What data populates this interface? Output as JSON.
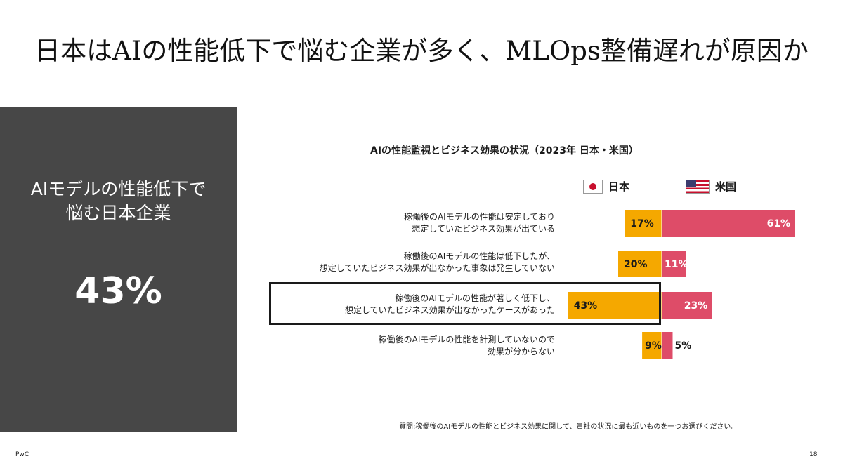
{
  "title": "日本はAIの性能低下で悩む企業が多く、MLOps整備遅れが原因か",
  "side_panel": {
    "heading_line1": "AIモデルの性能低下で",
    "heading_line2": "悩む日本企業",
    "value": "43%"
  },
  "footnote": "質問:稼働後のAIモデルの性能とビジネス効果に関して、貴社の状況に最も近いものを一つお選びください。",
  "brand": "PwC",
  "page_number": "18",
  "colors": {
    "japan": "#f5a800",
    "usa": "#de4c68",
    "panel": "#474747",
    "highlight_border": "#1a1a1a"
  },
  "chart_data": {
    "type": "bar",
    "orientation": "horizontal-diverging",
    "title": "AIの性能監視とビジネス効果の状況（2023年 日本・米国）",
    "categories": [
      [
        "稼働後のAIモデルの性能は安定しており",
        "想定していたビジネス効果が出ている"
      ],
      [
        "稼働後のAIモデルの性能は低下したが、",
        "想定していたビジネス効果が出なかった事象は発生していない"
      ],
      [
        "稼働後のAIモデルの性能が著しく低下し、",
        "想定していたビジネス効果が出なかったケースがあった"
      ],
      [
        "稼働後のAIモデルの性能を計測していないので",
        "効果が分からない"
      ]
    ],
    "series": [
      {
        "name": "日本",
        "values": [
          17,
          20,
          43,
          9
        ],
        "labels": [
          "17%",
          "20%",
          "43%",
          "9%"
        ],
        "icon": "japan-flag-icon"
      },
      {
        "name": "米国",
        "values": [
          61,
          11,
          23,
          5
        ],
        "labels": [
          "61%",
          "11%",
          "23%",
          "5%"
        ],
        "icon": "us-flag-icon"
      }
    ],
    "highlighted_category": 2,
    "legend_position": "top"
  }
}
